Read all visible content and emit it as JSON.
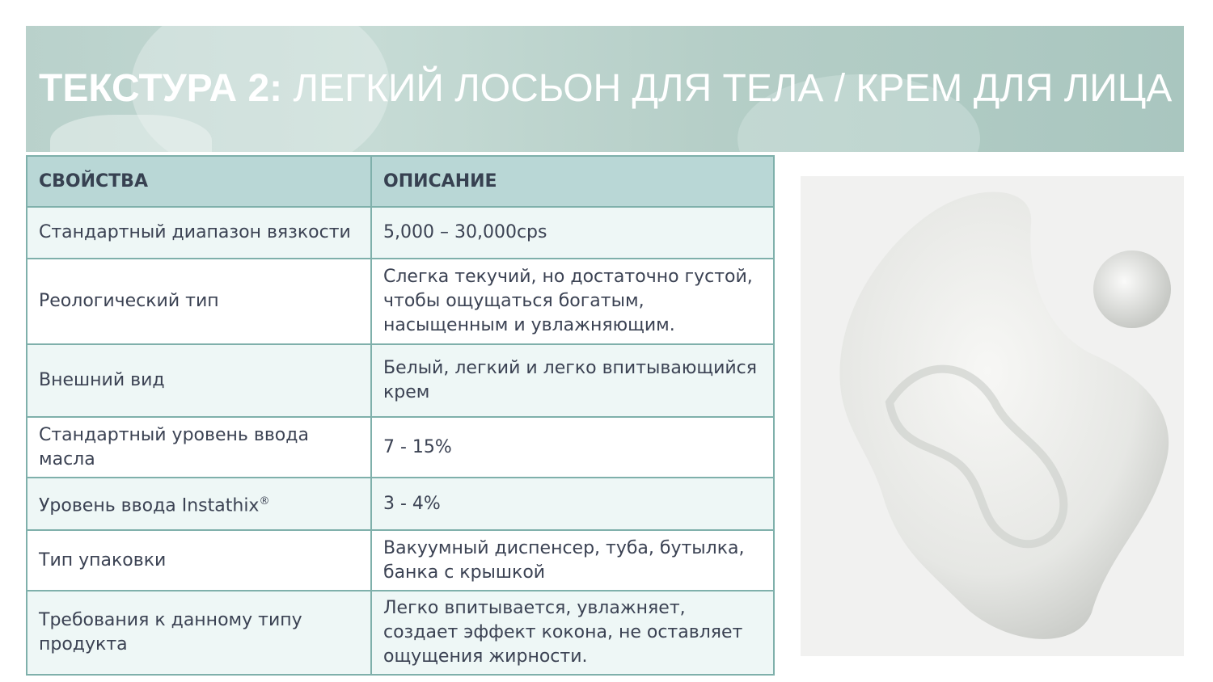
{
  "title": {
    "bold": "ТЕКСТУРА 2:",
    "rest": " ЛЕГКИЙ ЛОСЬОН ДЛЯ ТЕЛА / КРЕМ ДЛЯ ЛИЦА"
  },
  "table": {
    "headers": [
      "СВОЙСТВА",
      "ОПИСАНИЕ"
    ],
    "rows": [
      {
        "property": "Стандартный диапазон вязкости",
        "description": "5,000 – 30,000cps"
      },
      {
        "property": "Реологический тип",
        "description": "Слегка текучий, но достаточно густой, чтобы ощущаться богатым, насыщенным и увлажняющим."
      },
      {
        "property": "Внешний вид",
        "description": "Белый, легкий и легко впитывающийся крем"
      },
      {
        "property": "Стандартный уровень ввода масла",
        "description": "7 - 15%"
      },
      {
        "property": "Уровень ввода Instathix",
        "property_sup": "®",
        "description": "3 - 4%"
      },
      {
        "property": "Тип упаковки",
        "description": "Вакуумный диспенсер, туба, бутылка, банка с крышкой"
      },
      {
        "property": "Требования к данному типу продукта",
        "description": "Легко впитывается, увлажняет, создает эффект кокона, не оставляет ощущения жирности."
      }
    ]
  },
  "colors": {
    "header_bg": "#b9d7d6",
    "row_alt": "#eef7f6",
    "border": "#7fb0ab",
    "banner": "#b9d1cb"
  }
}
